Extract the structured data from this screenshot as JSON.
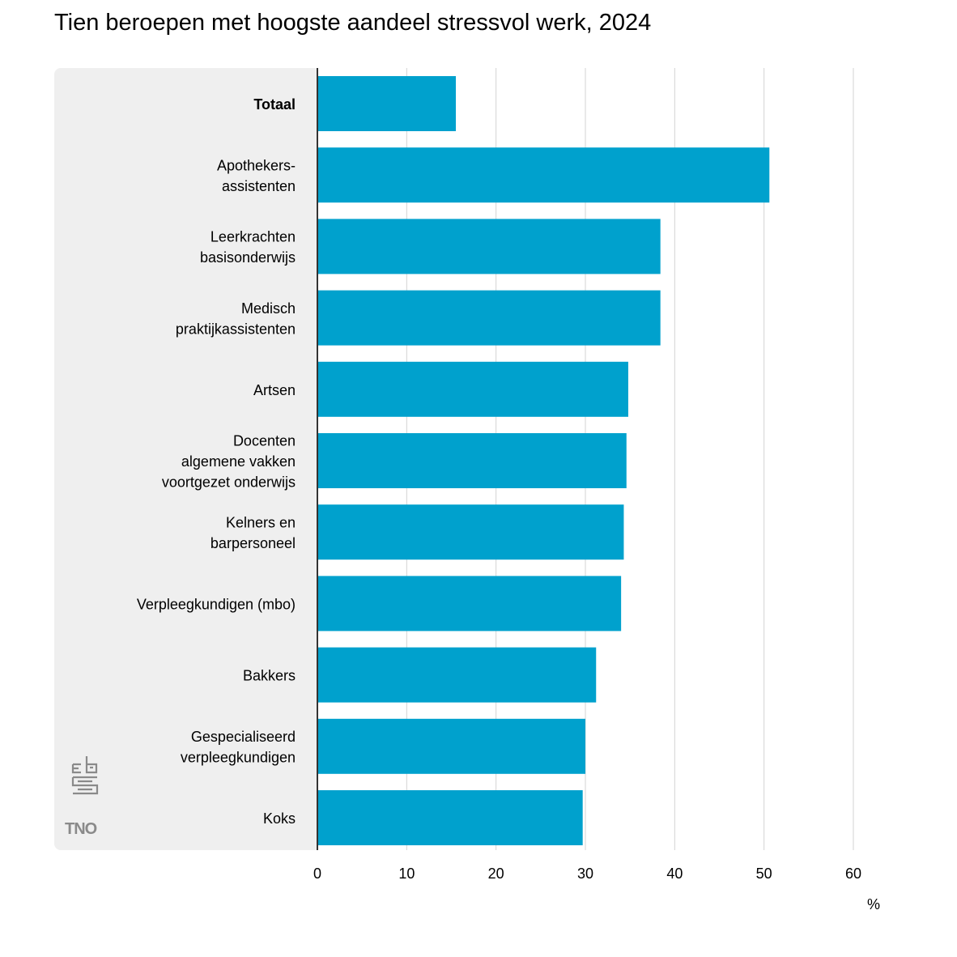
{
  "chart_data": {
    "type": "bar",
    "orientation": "horizontal",
    "title": "Tien beroepen met hoogste aandeel stressvol werk, 2024",
    "categories": [
      [
        "Totaal"
      ],
      [
        "Apothekers-",
        "assistenten"
      ],
      [
        "Leerkrachten",
        "basisonderwijs"
      ],
      [
        "Medisch",
        "praktijkassistenten"
      ],
      [
        "Artsen"
      ],
      [
        "Docenten",
        "algemene vakken",
        "voortgezet onderwijs"
      ],
      [
        "Kelners en",
        "barpersoneel"
      ],
      [
        "Verpleegkundigen (mbo)"
      ],
      [
        "Bakkers"
      ],
      [
        "Gespecialiseerd",
        "verpleegkundigen"
      ],
      [
        "Koks"
      ]
    ],
    "bold_categories": [
      0
    ],
    "values": [
      15.5,
      50.6,
      38.4,
      38.4,
      34.8,
      34.6,
      34.3,
      34.0,
      31.2,
      30.0,
      29.7
    ],
    "xlim": [
      0,
      60
    ],
    "xticks": [
      0,
      10,
      20,
      30,
      40,
      50,
      60
    ],
    "xunit": "%",
    "grid": true,
    "bar_color": "#00a1cd",
    "panel_color": "#efefef"
  },
  "logos": {
    "cbs": "cbs-logo",
    "tno": "TNO"
  }
}
